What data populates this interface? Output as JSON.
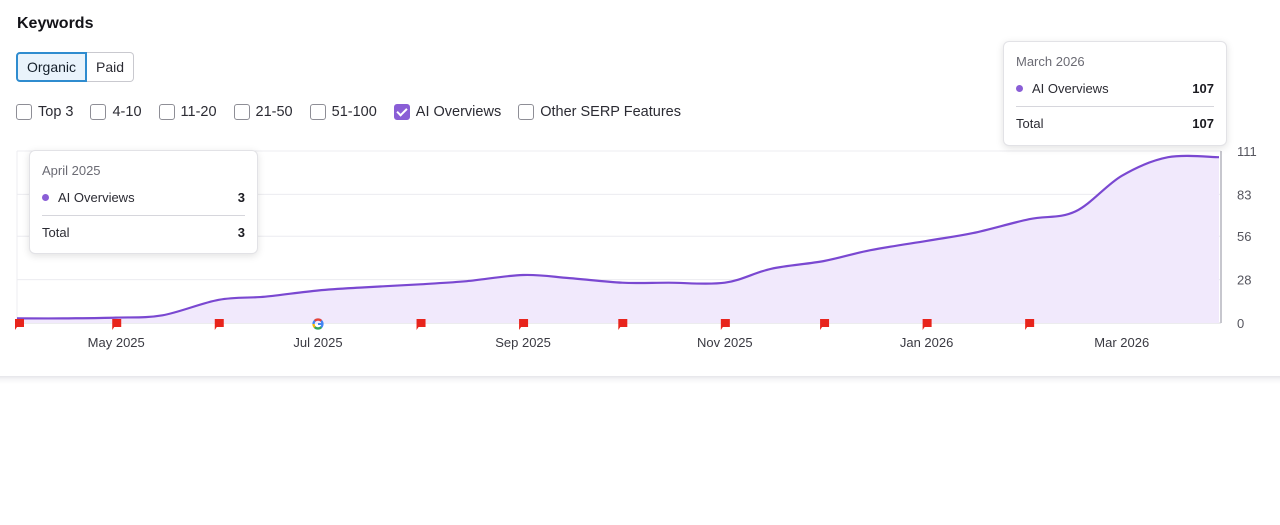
{
  "header": {
    "title": "Keywords"
  },
  "toggle": {
    "organic_label": "Organic",
    "paid_label": "Paid",
    "selected": "Organic"
  },
  "filters": [
    {
      "label": "Top 3",
      "checked": false
    },
    {
      "label": "4-10",
      "checked": false
    },
    {
      "label": "11-20",
      "checked": false
    },
    {
      "label": "21-50",
      "checked": false
    },
    {
      "label": "51-100",
      "checked": false
    },
    {
      "label": "AI Overviews",
      "checked": true
    },
    {
      "label": "Other SERP Features",
      "checked": false
    }
  ],
  "colors": {
    "series": "#7a48d1",
    "area": "#f1e9fc",
    "marker_red": "#e8241c",
    "accent_blue": "#2f8ccf"
  },
  "tooltips": {
    "left": {
      "period": "April 2025",
      "series_name": "AI Overviews",
      "series_value": "3",
      "total_label": "Total",
      "total_value": "3"
    },
    "right": {
      "period": "March 2026",
      "series_name": "AI Overviews",
      "series_value": "107",
      "total_label": "Total",
      "total_value": "107"
    }
  },
  "chart_data": {
    "type": "area",
    "title": "",
    "xlabel": "",
    "ylabel": "",
    "x_start": "2025-04-01",
    "x_end": "2026-03-31",
    "x_ticks": [
      {
        "date": "2025-05-01",
        "label": "May 2025"
      },
      {
        "date": "2025-07-01",
        "label": "Jul 2025"
      },
      {
        "date": "2025-09-01",
        "label": "Sep 2025"
      },
      {
        "date": "2025-11-01",
        "label": "Nov 2025"
      },
      {
        "date": "2026-01-01",
        "label": "Jan 2026"
      },
      {
        "date": "2026-03-01",
        "label": "Mar 2026"
      }
    ],
    "y_ticks": [
      0,
      28,
      56,
      83,
      111
    ],
    "ylim": [
      0,
      111
    ],
    "grid": true,
    "y_axis_position": "right",
    "series": [
      {
        "name": "AI Overviews",
        "points": [
          {
            "date": "2025-04-01",
            "value": 3
          },
          {
            "date": "2025-04-15",
            "value": 3
          },
          {
            "date": "2025-05-01",
            "value": 3.5
          },
          {
            "date": "2025-05-15",
            "value": 5
          },
          {
            "date": "2025-06-01",
            "value": 15
          },
          {
            "date": "2025-06-15",
            "value": 17
          },
          {
            "date": "2025-07-01",
            "value": 21
          },
          {
            "date": "2025-07-15",
            "value": 23
          },
          {
            "date": "2025-08-01",
            "value": 25
          },
          {
            "date": "2025-08-15",
            "value": 27
          },
          {
            "date": "2025-09-01",
            "value": 31
          },
          {
            "date": "2025-09-15",
            "value": 29
          },
          {
            "date": "2025-10-01",
            "value": 26
          },
          {
            "date": "2025-10-15",
            "value": 26
          },
          {
            "date": "2025-11-01",
            "value": 26
          },
          {
            "date": "2025-11-15",
            "value": 35
          },
          {
            "date": "2025-12-01",
            "value": 40
          },
          {
            "date": "2025-12-15",
            "value": 47
          },
          {
            "date": "2026-01-01",
            "value": 53
          },
          {
            "date": "2026-01-15",
            "value": 58
          },
          {
            "date": "2026-02-01",
            "value": 67
          },
          {
            "date": "2026-02-15",
            "value": 72
          },
          {
            "date": "2026-03-01",
            "value": 95
          },
          {
            "date": "2026-03-15",
            "value": 107
          }
        ]
      }
    ],
    "event_markers": [
      {
        "date": "2025-04-01",
        "icon": "red-flag-icon"
      },
      {
        "date": "2025-05-01",
        "icon": "red-flag-icon"
      },
      {
        "date": "2025-06-01",
        "icon": "red-flag-icon"
      },
      {
        "date": "2025-07-01",
        "icon": "google-icon"
      },
      {
        "date": "2025-08-01",
        "icon": "red-flag-icon"
      },
      {
        "date": "2025-09-01",
        "icon": "red-flag-icon"
      },
      {
        "date": "2025-10-01",
        "icon": "red-flag-icon"
      },
      {
        "date": "2025-11-01",
        "icon": "red-flag-icon"
      },
      {
        "date": "2025-12-01",
        "icon": "red-flag-icon"
      },
      {
        "date": "2026-01-01",
        "icon": "red-flag-icon"
      },
      {
        "date": "2026-02-01",
        "icon": "red-flag-icon"
      }
    ]
  }
}
